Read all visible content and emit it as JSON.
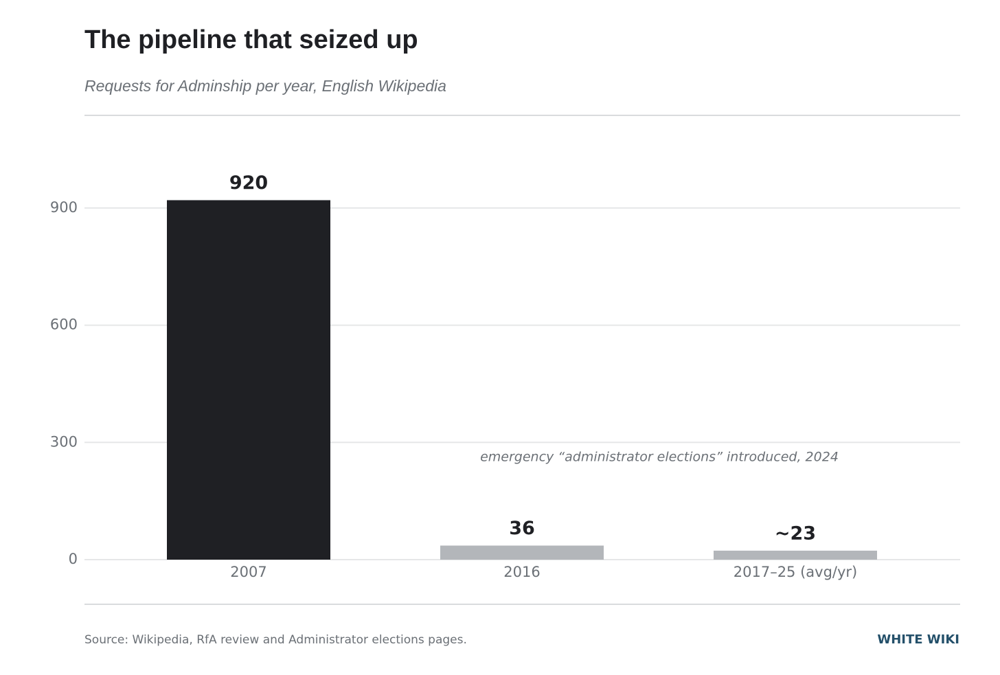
{
  "chart_data": {
    "type": "bar",
    "title": "The pipeline that seized up",
    "subtitle": "Requests for Adminship per year, English Wikipedia",
    "categories": [
      "2007",
      "2016",
      "2017–25 (avg/yr)"
    ],
    "values": [
      920,
      36,
      23
    ],
    "value_labels": [
      "920",
      "36",
      "~23"
    ],
    "colors": [
      "#1f2024",
      "#b3b6ba",
      "#b3b6ba"
    ],
    "ylim": [
      0,
      1000
    ],
    "yticks": [
      0,
      300,
      600,
      900
    ],
    "grid": true,
    "annotation": "emergency “administrator elections” introduced, 2024",
    "source": "Source: Wikipedia, RfA review and Administrator elections pages.",
    "credit": "WHITE WIKI"
  }
}
